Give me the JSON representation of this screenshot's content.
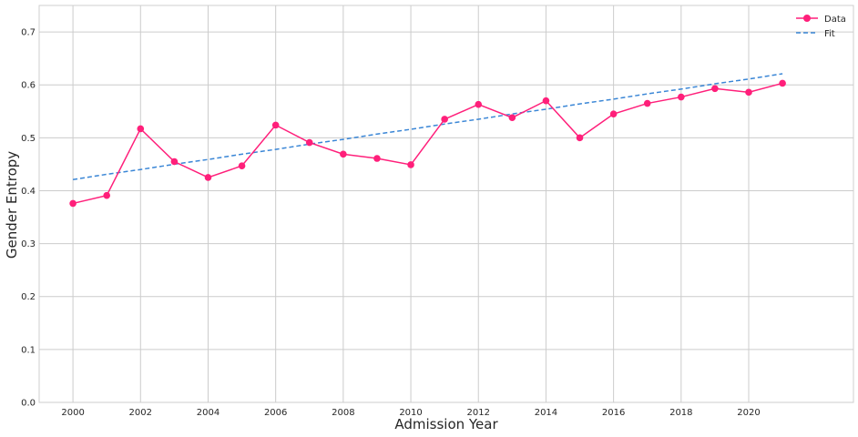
{
  "chart_data": {
    "type": "line",
    "xlabel": "Admission Year",
    "ylabel": "Gender Entropy",
    "xlim": [
      1999,
      2023.1
    ],
    "ylim": [
      0,
      0.75
    ],
    "x_ticks": [
      2000,
      2002,
      2004,
      2006,
      2008,
      2010,
      2012,
      2014,
      2016,
      2018,
      2020
    ],
    "y_ticks": [
      0.0,
      0.1,
      0.2,
      0.3,
      0.4,
      0.5,
      0.6,
      0.7
    ],
    "x_tick_labels": [
      "2000",
      "2002",
      "2004",
      "2006",
      "2008",
      "2010",
      "2012",
      "2014",
      "2016",
      "2018",
      "2020"
    ],
    "y_tick_labels": [
      "0.0",
      "0.1",
      "0.2",
      "0.3",
      "0.4",
      "0.5",
      "0.6",
      "0.7"
    ],
    "grid": true,
    "legend_position": "top-right",
    "x": [
      2000,
      2001,
      2002,
      2003,
      2004,
      2005,
      2006,
      2007,
      2008,
      2009,
      2010,
      2011,
      2012,
      2013,
      2014,
      2015,
      2016,
      2017,
      2018,
      2019,
      2020,
      2021
    ],
    "series": [
      {
        "name": "Data",
        "color": "#ff1f7a",
        "style": "solid-with-markers",
        "values": [
          0.376,
          0.391,
          0.517,
          0.455,
          0.425,
          0.447,
          0.524,
          0.491,
          0.469,
          0.461,
          0.449,
          0.535,
          0.563,
          0.538,
          0.57,
          0.5,
          0.545,
          0.565,
          0.577,
          0.593,
          0.586,
          0.603
        ]
      },
      {
        "name": "Fit",
        "color": "#3a86d6",
        "style": "dashed",
        "values": [
          0.421,
          0.431,
          0.44,
          0.45,
          0.459,
          0.469,
          0.478,
          0.488,
          0.497,
          0.507,
          0.516,
          0.526,
          0.535,
          0.545,
          0.554,
          0.564,
          0.573,
          0.583,
          0.592,
          0.602,
          0.611,
          0.621
        ]
      }
    ]
  }
}
